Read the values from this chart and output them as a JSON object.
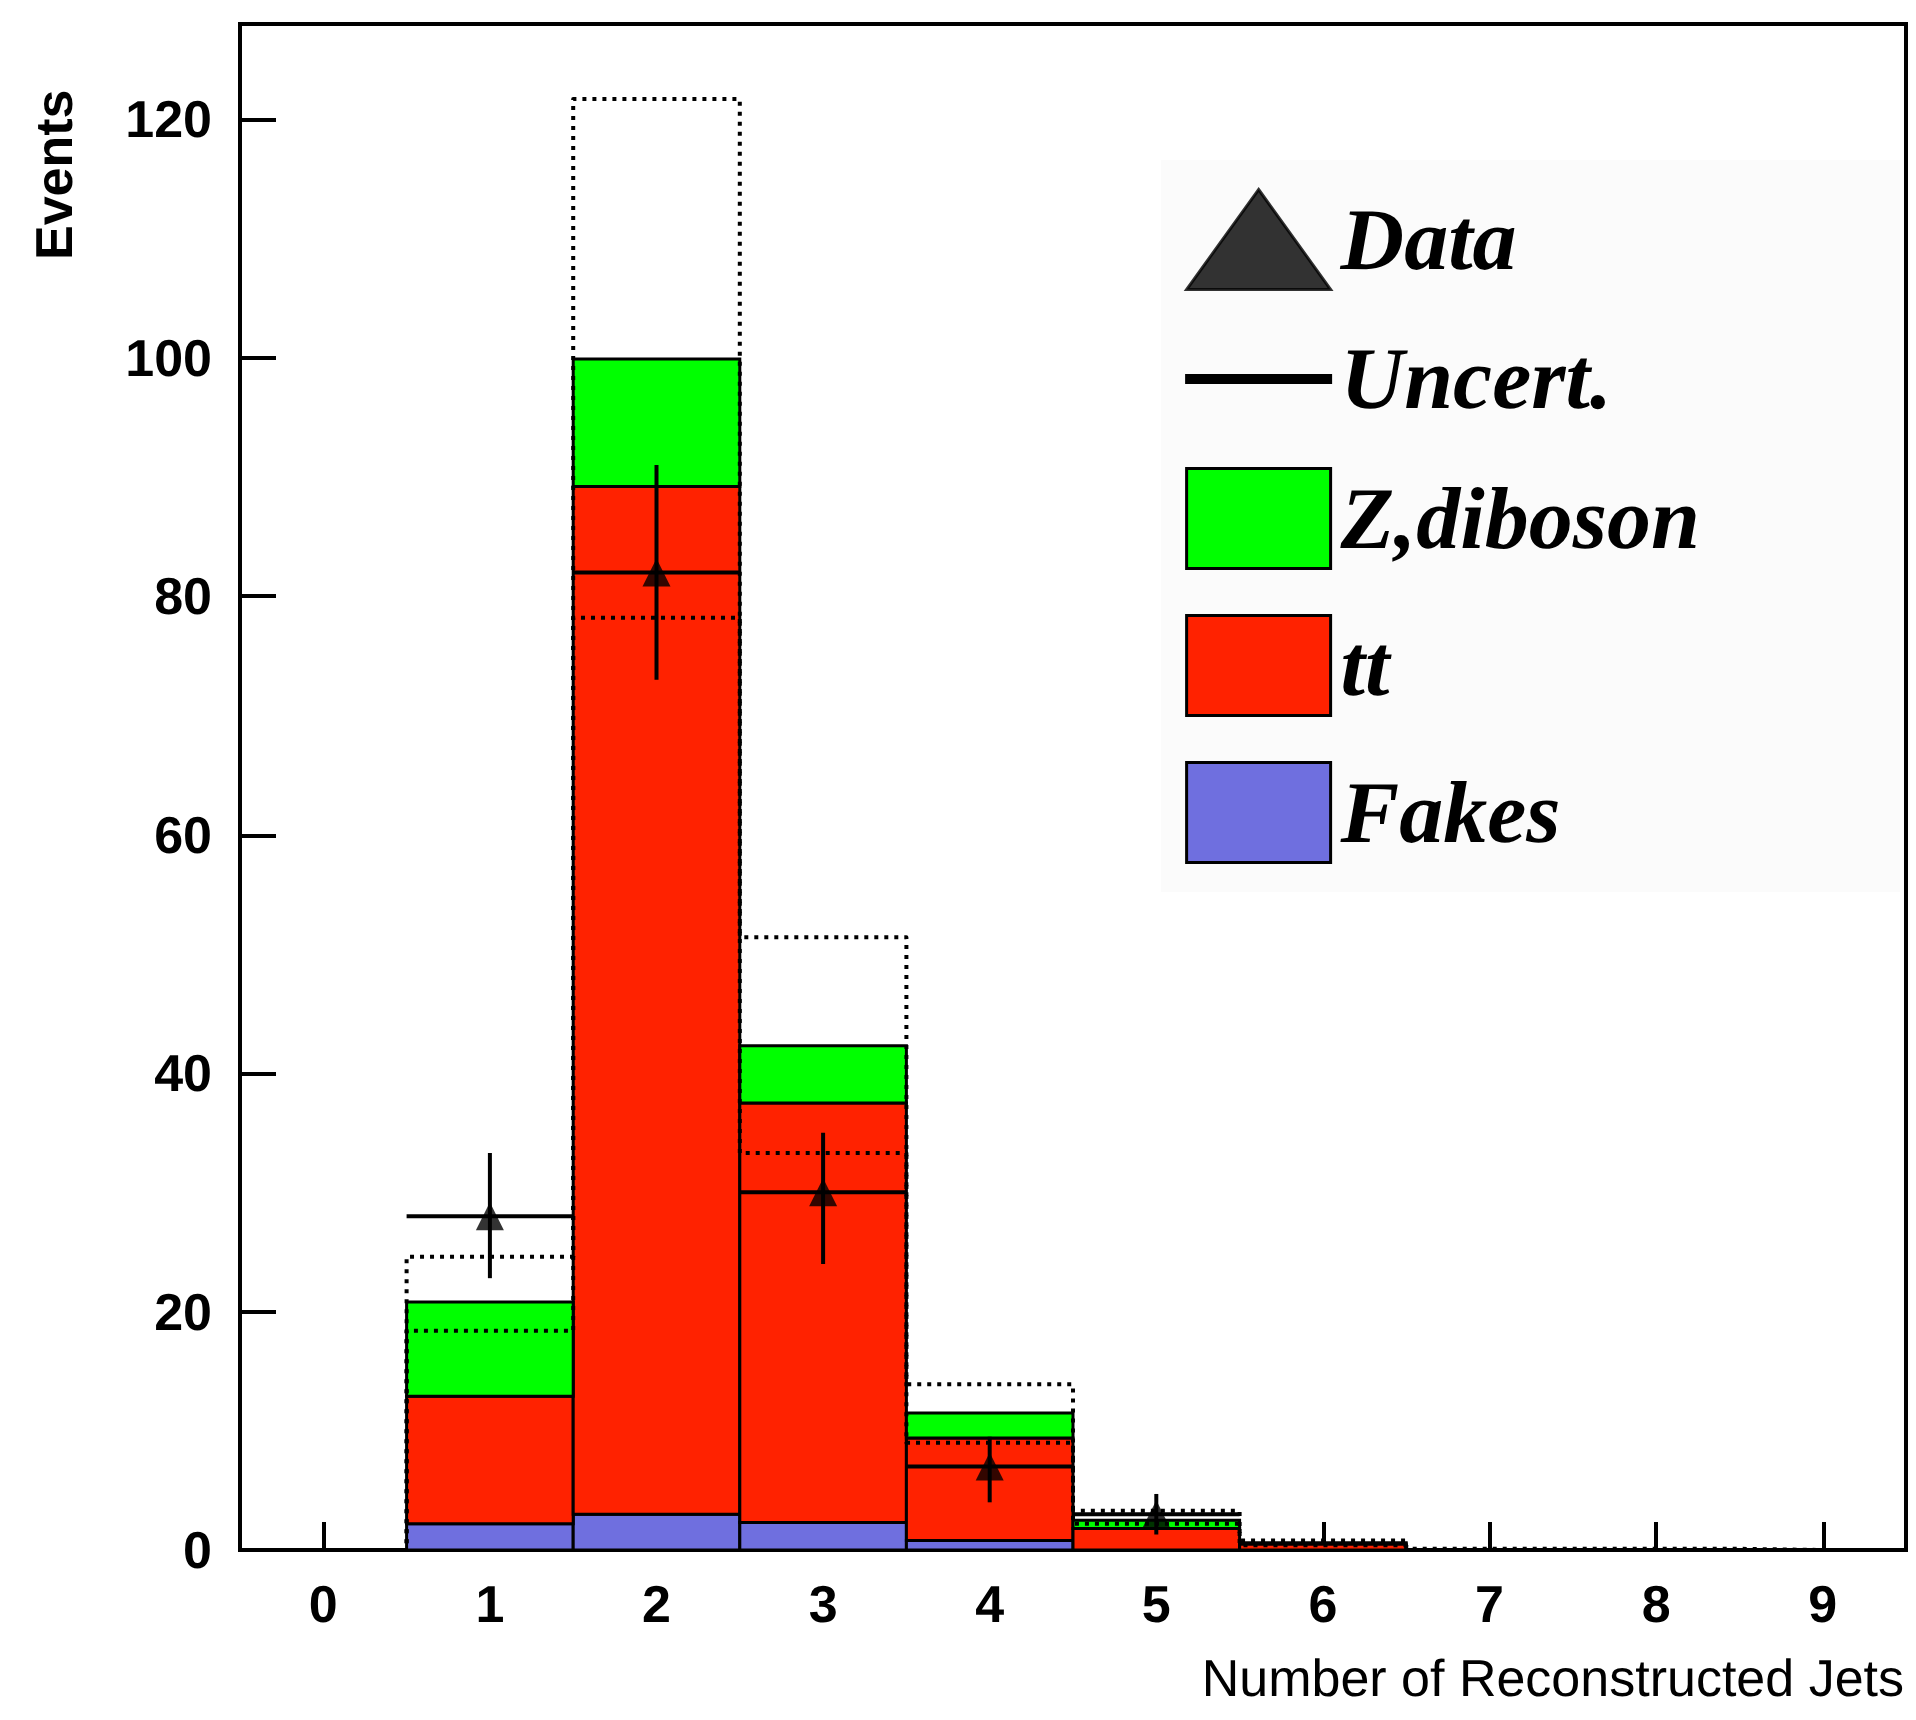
{
  "chart_data": {
    "type": "bar",
    "stacked": true,
    "xlabel": "Number of Reconstructed Jets",
    "ylabel": "Events",
    "x": [
      0,
      1,
      2,
      3,
      4,
      5,
      6,
      7,
      8,
      9
    ],
    "xlim": [
      -0.5,
      9.5
    ],
    "xticks": [
      0,
      1,
      2,
      3,
      4,
      5,
      6,
      7,
      8,
      9
    ],
    "ylim": [
      0,
      128
    ],
    "yticks": [
      0,
      20,
      40,
      60,
      80,
      100,
      120
    ],
    "grid": false,
    "legend": "top right",
    "series": [
      {
        "name": "Fakes",
        "color": "#6f6fdf",
        "values": [
          0,
          2.2,
          3.0,
          2.3,
          0.8,
          null,
          0,
          0,
          0,
          0
        ]
      },
      {
        "name": "tt",
        "color": "#ff2200",
        "values": [
          0,
          10.7,
          86.2,
          35.2,
          8.6,
          1.8,
          0.5,
          null,
          null,
          0
        ]
      },
      {
        "name": "Z,diboson",
        "color": "#00ff00",
        "values": [
          0,
          7.9,
          10.7,
          4.8,
          2.1,
          0.7,
          0.1,
          0,
          0,
          0
        ]
      },
      {
        "name": "Uncert.",
        "type": "step",
        "color": "#000000",
        "line_style": "dotted",
        "values": [
          0,
          24.6,
          121.7,
          51.4,
          13.9,
          3.3,
          0.8,
          0.1,
          0.1,
          0
        ]
      },
      {
        "type": "step",
        "color": "#000000",
        "line_style": "dotted",
        "values": [
          0,
          18.4,
          78.2,
          33.3,
          9.0,
          2.2,
          0.4,
          0,
          0,
          0
        ]
      },
      {
        "name": "Data",
        "type": "scatter",
        "marker": "triangle",
        "color": "#000000",
        "x": [
          1,
          2,
          3,
          4,
          5
        ],
        "values": [
          28,
          82,
          30,
          7,
          3
        ],
        "errors": [
          [
            22.8,
            33.3
          ],
          [
            73,
            91
          ],
          [
            24,
            35
          ],
          [
            4,
            9.5
          ],
          [
            1.3,
            4.7
          ]
        ],
        "xerrors": [
          0.5,
          0.5,
          0.5,
          0.5,
          0.5
        ]
      }
    ]
  }
}
